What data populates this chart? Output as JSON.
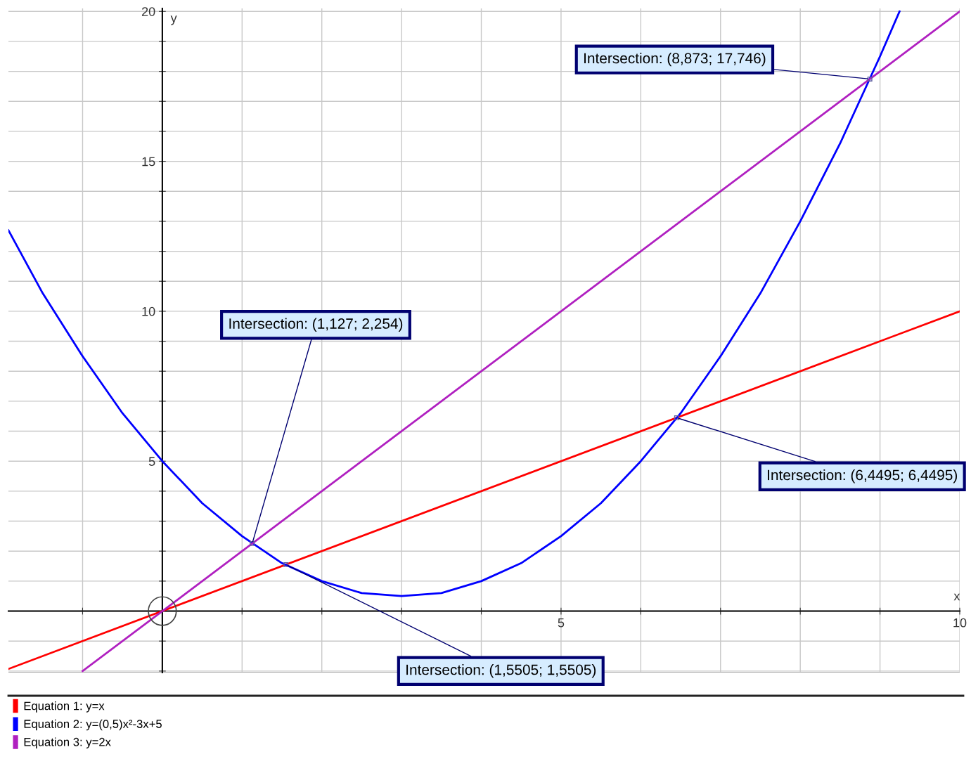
{
  "chart_data": {
    "type": "line",
    "xlabel": "x",
    "ylabel": "y",
    "xlim": [
      -1.93,
      10
    ],
    "ylim": [
      -2.05,
      20.1
    ],
    "xticks": [
      {
        "value": -1,
        "label": null
      },
      {
        "value": 0,
        "label": null
      },
      {
        "value": 1,
        "label": null
      },
      {
        "value": 2,
        "label": null
      },
      {
        "value": 3,
        "label": null
      },
      {
        "value": 4,
        "label": null
      },
      5,
      {
        "value": 6,
        "label": null
      },
      {
        "value": 7,
        "label": null
      },
      {
        "value": 8,
        "label": null
      },
      {
        "value": 9,
        "label": null
      },
      10
    ],
    "yticks": [
      {
        "value": -2,
        "label": null
      },
      {
        "value": -1,
        "label": null
      },
      {
        "value": 0,
        "label": null
      },
      {
        "value": 1,
        "label": null
      },
      {
        "value": 2,
        "label": null
      },
      {
        "value": 3,
        "label": null
      },
      {
        "value": 4,
        "label": null
      },
      5,
      {
        "value": 6,
        "label": null
      },
      {
        "value": 7,
        "label": null
      },
      {
        "value": 8,
        "label": null
      },
      {
        "value": 9,
        "label": null
      },
      10,
      {
        "value": 11,
        "label": null
      },
      {
        "value": 12,
        "label": null
      },
      {
        "value": 13,
        "label": null
      },
      {
        "value": 14,
        "label": null
      },
      15,
      {
        "value": 16,
        "label": null
      },
      {
        "value": 17,
        "label": null
      },
      {
        "value": 18,
        "label": null
      },
      {
        "value": 19,
        "label": null
      },
      20
    ],
    "grid": true,
    "legend": "bottom",
    "marker": "none",
    "line_style": "solid",
    "series": [
      {
        "name": "Equation 1: y=x",
        "color": "#ff0000",
        "x": [
          -1.93,
          10
        ],
        "values": [
          -1.93,
          10
        ]
      },
      {
        "name": "Equation 2: y=(0,5)x²-3x+5",
        "color": "#0000ff",
        "x": [
          -1.93,
          -1.5,
          -1,
          -0.5,
          0,
          0.5,
          1,
          1.5,
          2,
          2.5,
          3,
          3.5,
          4,
          4.5,
          5,
          5.5,
          6,
          6.5,
          7,
          7.5,
          8,
          8.5,
          9,
          9.245
        ],
        "values": [
          12.7,
          10.6,
          8.5,
          6.6,
          5,
          3.6,
          2.5,
          1.6,
          1,
          0.6,
          0.5,
          0.6,
          1,
          1.6,
          2.5,
          3.6,
          5,
          6.6,
          8.5,
          10.6,
          13,
          15.6,
          18.5,
          20
        ]
      },
      {
        "name": "Equation 3: y=2x",
        "color": "#b020c0",
        "x": [
          -1.0,
          10
        ],
        "values": [
          -2.0,
          20
        ]
      }
    ],
    "annotations": [
      {
        "text": "Intersection: (8,873; 17,746)",
        "x": 8.873,
        "y": 17.746
      },
      {
        "text": "Intersection: (6,4495; 6,4495)",
        "x": 6.4495,
        "y": 6.4495
      },
      {
        "text": "Intersection: (1,127; 2,254)",
        "x": 1.127,
        "y": 2.254
      },
      {
        "text": "Intersection: (1,5505; 1,5505)",
        "x": 1.5505,
        "y": 1.5505
      }
    ]
  }
}
